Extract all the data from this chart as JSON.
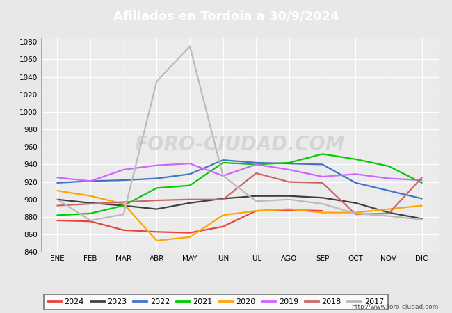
{
  "title": "Afiliados en Tordoia a 30/9/2024",
  "title_bg_color": "#5b8dd9",
  "title_text_color": "white",
  "ylim": [
    840,
    1085
  ],
  "yticks": [
    840,
    860,
    880,
    900,
    920,
    940,
    960,
    980,
    1000,
    1020,
    1040,
    1060,
    1080
  ],
  "months": [
    "ENE",
    "FEB",
    "MAR",
    "ABR",
    "MAY",
    "JUN",
    "JUL",
    "AGO",
    "SEP",
    "OCT",
    "NOV",
    "DIC"
  ],
  "footer_url": "http://www.foro-ciudad.com",
  "series": {
    "2024": {
      "color": "#e8433a",
      "data": [
        876,
        875,
        865,
        863,
        862,
        869,
        887,
        888,
        887,
        null,
        null,
        null
      ]
    },
    "2023": {
      "color": "#404040",
      "data": [
        900,
        896,
        893,
        889,
        896,
        901,
        904,
        904,
        902,
        896,
        885,
        878
      ]
    },
    "2022": {
      "color": "#4472c4",
      "data": [
        919,
        921,
        922,
        924,
        929,
        945,
        942,
        941,
        940,
        919,
        910,
        901
      ]
    },
    "2021": {
      "color": "#00cc00",
      "data": [
        882,
        884,
        893,
        913,
        916,
        942,
        940,
        942,
        952,
        946,
        938,
        919
      ]
    },
    "2020": {
      "color": "#ffa500",
      "data": [
        910,
        904,
        895,
        853,
        857,
        882,
        887,
        889,
        885,
        885,
        889,
        893
      ]
    },
    "2019": {
      "color": "#cc66ff",
      "data": [
        925,
        921,
        934,
        939,
        941,
        927,
        940,
        934,
        926,
        929,
        924,
        922
      ]
    },
    "2018": {
      "color": "#cc6666",
      "data": [
        893,
        895,
        897,
        899,
        900,
        900,
        930,
        920,
        919,
        883,
        884,
        925
      ]
    },
    "2017": {
      "color": "#bbbbbb",
      "data": [
        900,
        876,
        883,
        1035,
        1075,
        927,
        898,
        900,
        895,
        884,
        881,
        877
      ]
    }
  },
  "bg_color": "#e8e8e8",
  "plot_bg_color": "#ebebeb",
  "grid_color": "white",
  "legend_order": [
    "2024",
    "2023",
    "2022",
    "2021",
    "2020",
    "2019",
    "2018",
    "2017"
  ]
}
